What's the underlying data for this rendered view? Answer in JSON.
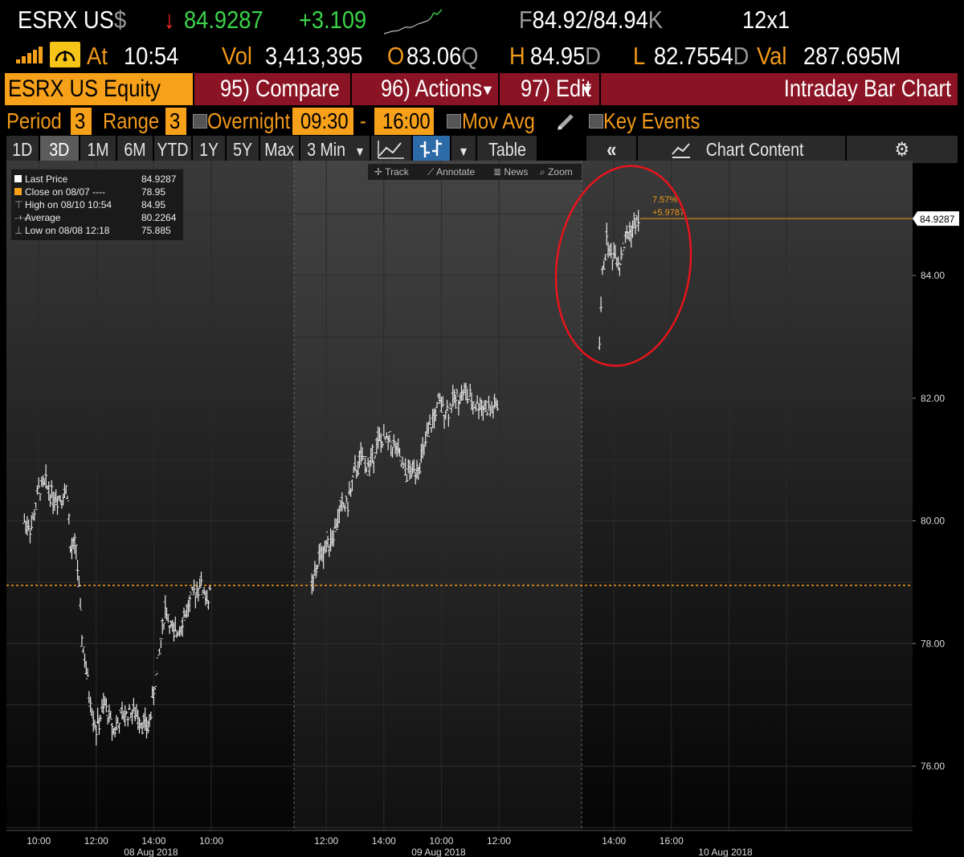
{
  "quote": {
    "ticker": "ESRX US",
    "currency_symbol": "$",
    "last_price": "84.9287",
    "change": "+3.109",
    "bid_ask_prefix": "F",
    "bid_ask": "84.92/84.94",
    "bid_ask_suffix": "K",
    "size": "12x1",
    "at_label": "At",
    "time": "10:54",
    "vol_label": "Vol",
    "volume": "3,413,395",
    "open_label": "O",
    "open": "83.06",
    "open_suffix": "Q",
    "high_label": "H",
    "high": "84.95",
    "high_suffix": "D",
    "low_label": "L",
    "low": "82.7554",
    "low_suffix": "D",
    "val_label": "Val",
    "value": "287.695M",
    "colors": {
      "up": "#3bd34b",
      "down_arrow": "#ff2a2a",
      "accent": "#f7a11a",
      "maroon": "#8b1424"
    }
  },
  "toolbar": {
    "security": "ESRX US Equity",
    "compare": "95) Compare",
    "actions": "96) Actions",
    "edit": "97) Edit",
    "title": "Intraday Bar Chart"
  },
  "settings": {
    "period_label": "Period",
    "period_value": "3",
    "range_label": "Range",
    "range_value": "3",
    "overnight_label": "Overnight",
    "start_time": "09:30",
    "dash": "-",
    "end_time": "16:00",
    "mov_avg_label": "Mov Avg",
    "key_events_label": "Key Events"
  },
  "tabs": {
    "ranges": [
      "1D",
      "3D",
      "1M",
      "6M",
      "YTD",
      "1Y",
      "5Y",
      "Max"
    ],
    "selected": "3D",
    "interval": "3 Min",
    "table": "Table",
    "chart_content": "Chart Content"
  },
  "subtoolbar": {
    "track": "Track",
    "annotate": "Annotate",
    "news": "News",
    "zoom": "Zoom"
  },
  "legend": [
    {
      "label": "Last Price",
      "value": "84.9287",
      "marker": "white-square"
    },
    {
      "label": "Close on 08/07 ----",
      "value": "78.95",
      "marker": "orange-square"
    },
    {
      "label": "High on 08/10 10:54",
      "value": "84.95",
      "marker": "high-icon"
    },
    {
      "label": "Average",
      "value": "80.2264",
      "marker": "average-icon"
    },
    {
      "label": "Low on 08/08 12:18",
      "value": "75.885",
      "marker": "low-icon"
    }
  ],
  "annotations": {
    "pct": "7.57%",
    "chg": "+5.9787",
    "last_tag": "84.9287"
  },
  "chart_data": {
    "type": "bar",
    "y_ticks": [
      "76.00",
      "78.00",
      "80.00",
      "82.00",
      "84.00"
    ],
    "ylim": [
      74.9,
      85.9
    ],
    "x_ticks": [
      "10:00",
      "12:00",
      "14:00",
      "10:00",
      "12:00",
      "14:00",
      "10:00",
      "12:00",
      "14:00",
      "16:00"
    ],
    "x_dates": [
      "08 Aug 2018",
      "09 Aug 2018",
      "10 Aug 2018"
    ],
    "prev_close": 78.95,
    "last_price": 84.9287,
    "series": [
      {
        "values": [
          [
            9.5,
            80.0
          ],
          [
            9.75,
            79.9
          ],
          [
            10.0,
            80.5
          ],
          [
            10.25,
            80.6
          ],
          [
            10.5,
            80.4
          ],
          [
            10.75,
            80.4
          ],
          [
            11.0,
            80.5
          ],
          [
            11.1,
            79.5
          ],
          [
            11.3,
            79.6
          ],
          [
            11.5,
            78.1
          ],
          [
            11.75,
            77.2
          ],
          [
            12.0,
            76.6
          ],
          [
            12.3,
            77.0
          ],
          [
            12.6,
            76.6
          ],
          [
            12.9,
            76.8
          ],
          [
            13.2,
            76.9
          ],
          [
            13.5,
            76.8
          ],
          [
            13.8,
            76.6
          ],
          [
            14.1,
            77.5
          ],
          [
            14.4,
            78.6
          ],
          [
            14.7,
            78.1
          ],
          [
            15.0,
            78.4
          ],
          [
            15.3,
            78.7
          ],
          [
            15.6,
            79.0
          ],
          [
            15.9,
            78.7
          ],
          [
            16.0,
            78.9
          ]
        ]
      },
      {
        "values": [
          [
            9.5,
            78.9
          ],
          [
            9.75,
            79.4
          ],
          [
            10.0,
            79.6
          ],
          [
            10.25,
            79.8
          ],
          [
            10.5,
            80.2
          ],
          [
            10.75,
            80.3
          ],
          [
            11.0,
            80.8
          ],
          [
            11.2,
            81.0
          ],
          [
            11.5,
            80.9
          ],
          [
            11.8,
            81.3
          ],
          [
            12.1,
            81.3
          ],
          [
            12.4,
            81.2
          ],
          [
            12.7,
            80.8
          ],
          [
            13.0,
            80.8
          ],
          [
            13.3,
            81.0
          ],
          [
            13.6,
            81.5
          ],
          [
            13.9,
            81.9
          ],
          [
            14.2,
            81.8
          ],
          [
            14.5,
            82.0
          ],
          [
            14.8,
            82.1
          ],
          [
            15.1,
            81.9
          ],
          [
            15.4,
            81.9
          ],
          [
            15.7,
            81.8
          ],
          [
            16.0,
            81.9
          ]
        ]
      },
      {
        "values": [
          [
            9.5,
            82.9
          ],
          [
            9.6,
            84.0
          ],
          [
            9.75,
            84.6
          ],
          [
            9.9,
            84.3
          ],
          [
            10.05,
            84.4
          ],
          [
            10.2,
            84.2
          ],
          [
            10.35,
            84.5
          ],
          [
            10.5,
            84.7
          ],
          [
            10.7,
            84.8
          ],
          [
            10.9,
            84.93
          ]
        ]
      }
    ]
  }
}
